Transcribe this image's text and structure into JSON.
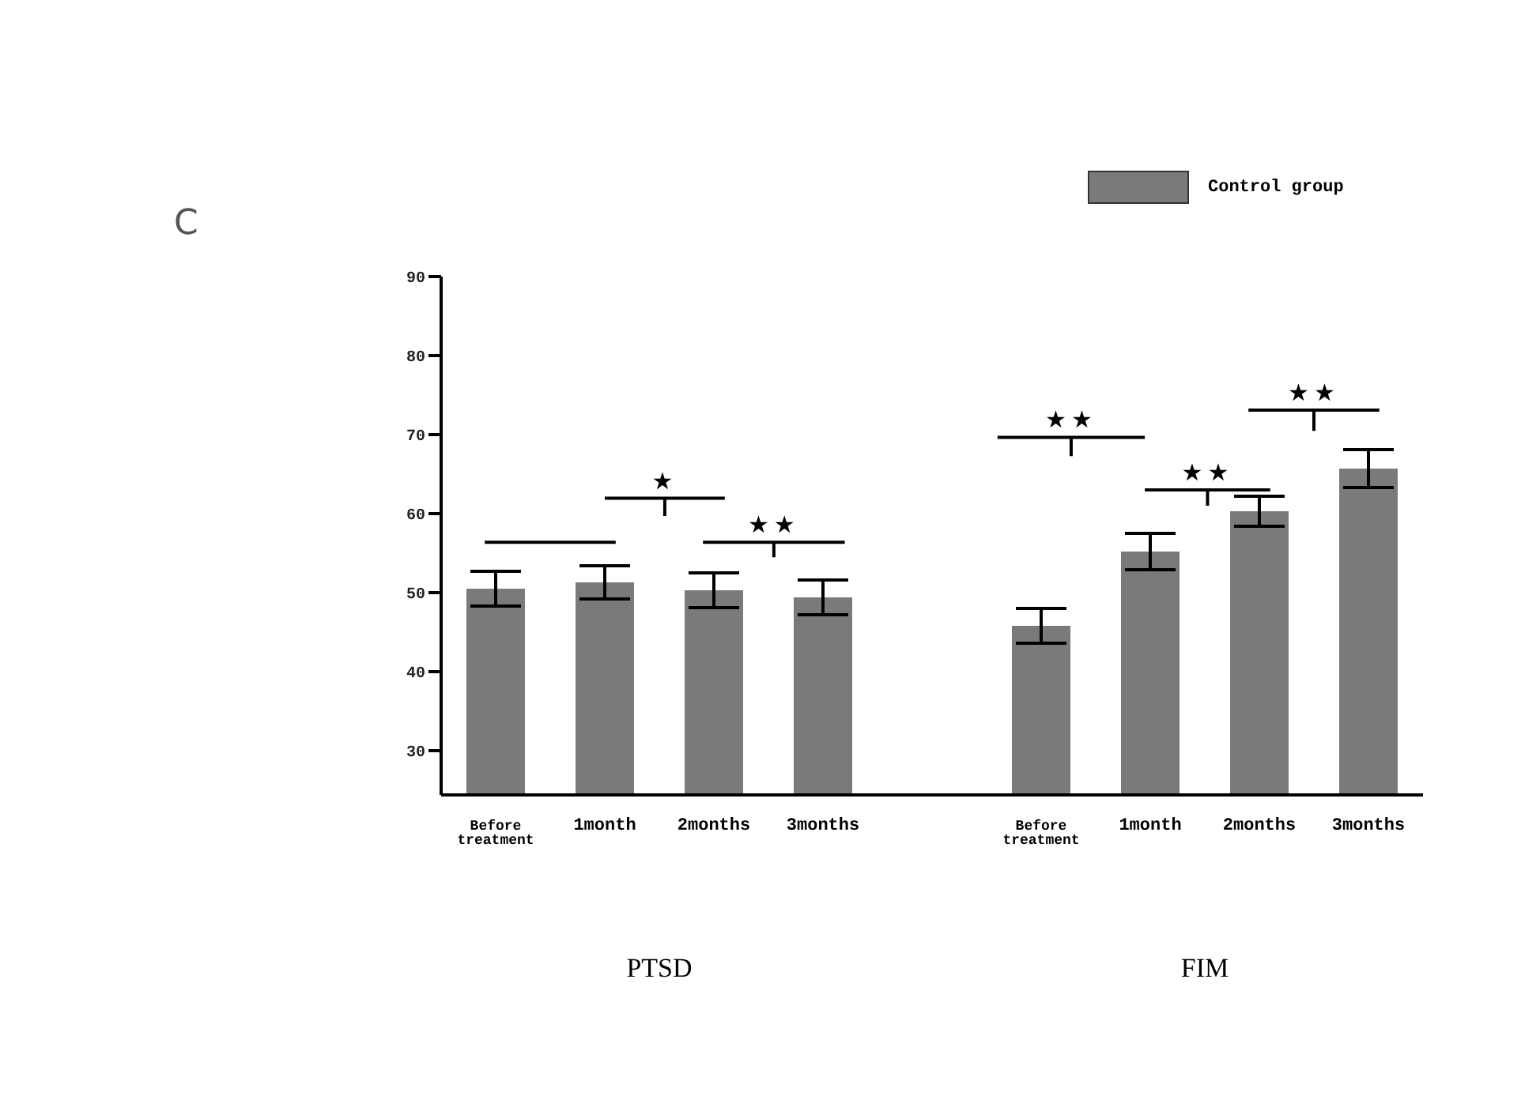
{
  "chart_data": {
    "type": "bar",
    "categories": [
      "Before treatment",
      "1month",
      "2months",
      "3months",
      null,
      "Before treatment",
      "1month",
      "2months",
      "3months"
    ],
    "series": [
      {
        "name": "Control group",
        "color": "#7a7a7a",
        "values": [
          50.5,
          51.3,
          50.3,
          49.4,
          null,
          45.8,
          55.2,
          60.3,
          65.7
        ],
        "errors": [
          2.2,
          2.1,
          2.2,
          2.2,
          null,
          2.2,
          2.3,
          1.9,
          2.4
        ]
      }
    ],
    "ylim": [
      24.4,
      90
    ],
    "yticks": [
      30,
      40,
      50,
      60,
      70,
      80,
      90
    ],
    "grid": false,
    "legend": "top right",
    "annotations": [
      "C",
      "★",
      "★★",
      "★★",
      "★★",
      "★★",
      "PTSD",
      "FIM"
    ]
  }
}
